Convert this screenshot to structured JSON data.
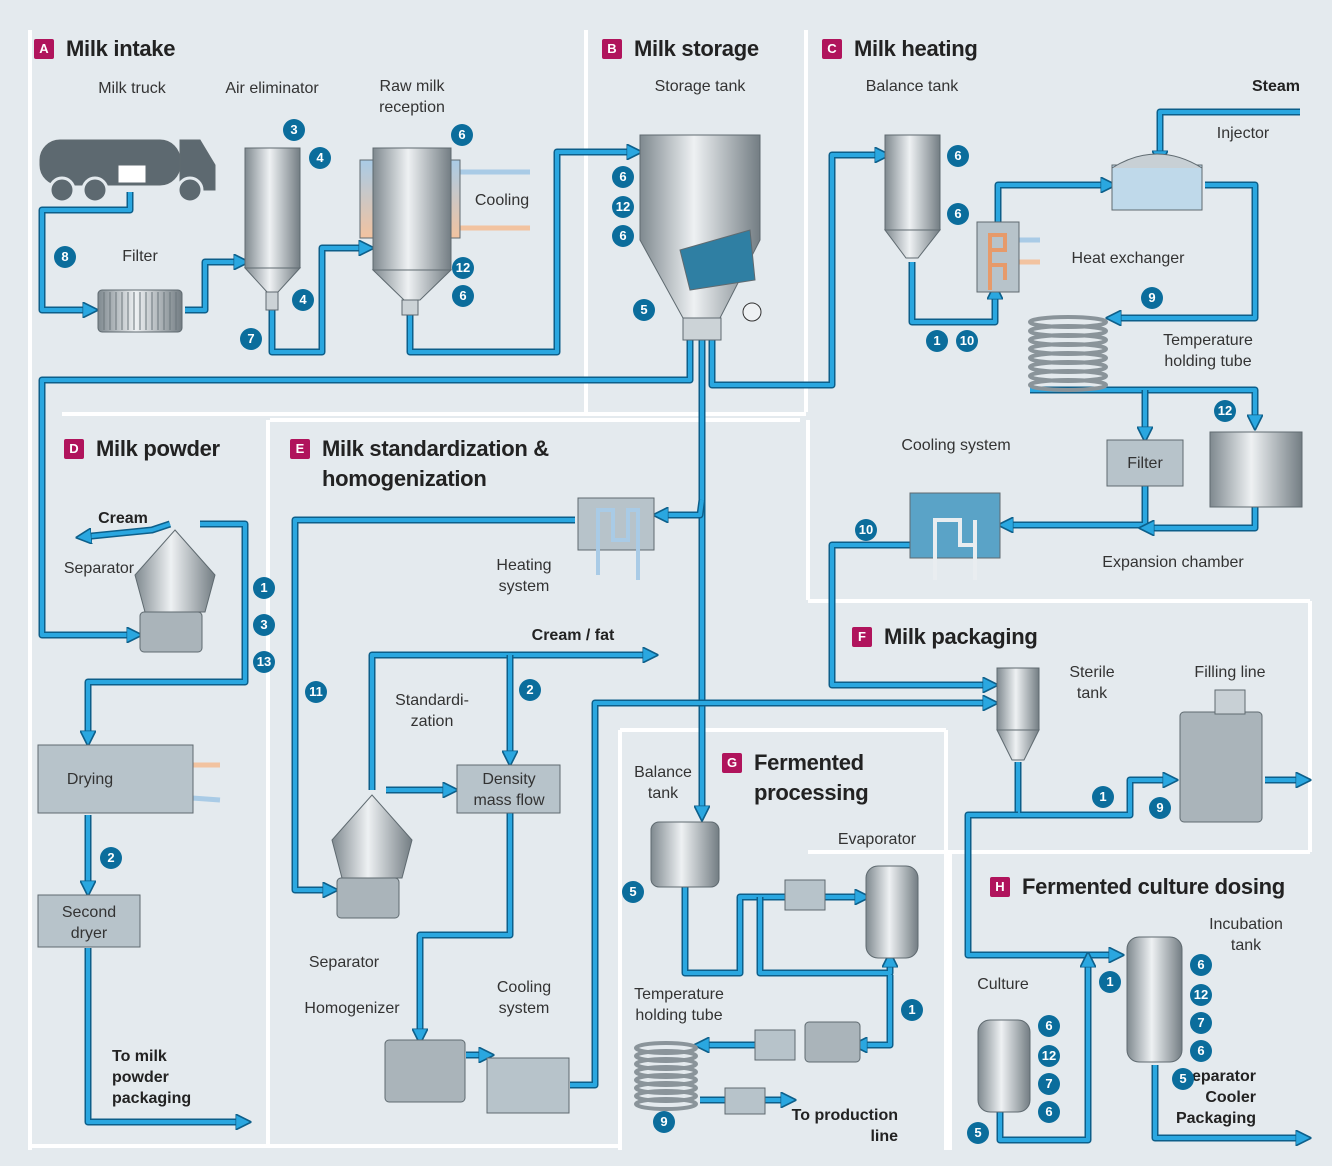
{
  "sections": [
    {
      "letter": "A",
      "title": "Milk intake",
      "labels": [
        "Milk truck",
        "Air eliminator",
        "Raw milk reception",
        "Filter",
        "Cooling"
      ],
      "badges": [
        "3",
        "4",
        "6",
        "12",
        "6",
        "4",
        "7",
        "8"
      ]
    },
    {
      "letter": "B",
      "title": "Milk storage",
      "labels": [
        "Storage tank"
      ],
      "badges": [
        "6",
        "12",
        "6",
        "5"
      ]
    },
    {
      "letter": "C",
      "title": "Milk heating",
      "labels": [
        "Balance tank",
        "Steam",
        "Injector",
        "Heat exchanger",
        "Temperature holding tube",
        "Cooling system",
        "Filter",
        "Expansion chamber"
      ],
      "badges": [
        "6",
        "6",
        "9",
        "1",
        "10",
        "12",
        "10"
      ]
    },
    {
      "letter": "D",
      "title": "Milk powder",
      "labels": [
        "Cream",
        "Separator",
        "Drying",
        "Second dryer",
        "To milk powder packaging"
      ],
      "badges": [
        "1",
        "3",
        "13",
        "2"
      ]
    },
    {
      "letter": "E",
      "title": "Milk standardization & homogenization",
      "labels": [
        "Heating system",
        "Cream / fat",
        "Standardi- zation",
        "Density mass flow",
        "Separator",
        "Homogenizer",
        "Cooling system"
      ],
      "badges": [
        "2",
        "11"
      ]
    },
    {
      "letter": "F",
      "title": "Milk packaging",
      "labels": [
        "Sterile tank",
        "Filling line"
      ],
      "badges": [
        "1",
        "9"
      ]
    },
    {
      "letter": "G",
      "title": "Fermented processing",
      "labels": [
        "Balance tank",
        "Evaporator",
        "Temperature holding tube",
        "To production line"
      ],
      "badges": [
        "5",
        "1",
        "9"
      ]
    },
    {
      "letter": "H",
      "title": "Fermented culture dosing",
      "labels": [
        "Incubation tank",
        "Culture",
        "Separator Cooler Packaging"
      ],
      "badges": [
        "1",
        "6",
        "12",
        "7",
        "6",
        "5",
        "6",
        "12",
        "7",
        "6",
        "5"
      ]
    }
  ]
}
